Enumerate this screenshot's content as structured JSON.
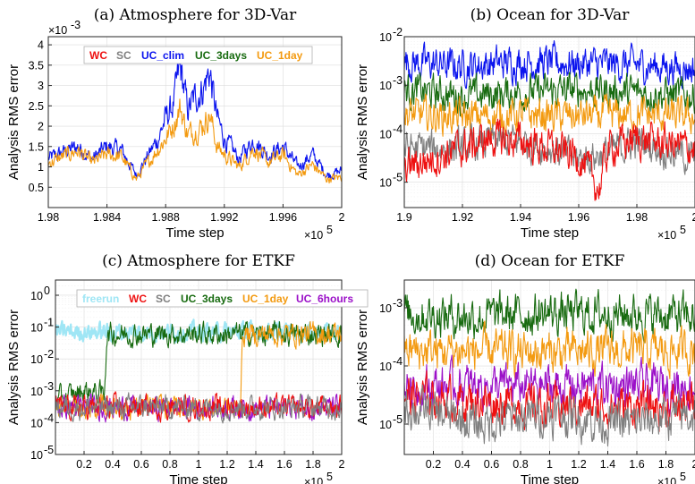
{
  "colors": {
    "WC": "#ee1111",
    "SC": "#808080",
    "UC_clim": "#0b14ee",
    "UC_3days": "#186b10",
    "UC_1day": "#f39a10",
    "UC_6hours": "#9b10c8",
    "freerun": "#9fe6f5"
  },
  "chart_data": [
    {
      "id": "a",
      "type": "line",
      "title": "(a) Atmosphere for 3D-Var",
      "xlabel": "Time step",
      "ylabel": "Analysis RMS error",
      "x_multiplier": "×10",
      "x_multiplier_exp": "5",
      "y_multiplier": "×10",
      "y_multiplier_exp": "-3",
      "xlim": [
        1.98,
        2.0
      ],
      "ylim": [
        0,
        4.2
      ],
      "yscale": "linear",
      "xticks": [
        1.98,
        1.984,
        1.988,
        1.992,
        1.996,
        2.0
      ],
      "xtick_labels": [
        "1.98",
        "1.984",
        "1.988",
        "1.992",
        "1.996",
        "2"
      ],
      "yticks": [
        0.5,
        1,
        1.5,
        2,
        2.5,
        3,
        3.5,
        4
      ],
      "ytick_labels": [
        "0.5",
        "1",
        "1.5",
        "2",
        "2.5",
        "3",
        "3.5",
        "4"
      ],
      "legend": [
        "WC",
        "SC",
        "UC_clim",
        "UC_3days",
        "UC_1day"
      ],
      "legend_position": "top",
      "grid": true,
      "series": [
        {
          "name": "UC_clim",
          "x": [
            1.98,
            1.981,
            1.982,
            1.983,
            1.984,
            1.985,
            1.986,
            1.987,
            1.9875,
            1.988,
            1.9885,
            1.989,
            1.9895,
            1.99,
            1.9905,
            1.991,
            1.9915,
            1.992,
            1.993,
            1.994,
            1.995,
            1.996,
            1.997,
            1.998,
            1.999,
            2.0
          ],
          "values": [
            1.2,
            1.35,
            1.5,
            1.2,
            1.5,
            1.4,
            0.8,
            1.4,
            1.7,
            2.2,
            2.5,
            3.45,
            2.4,
            2.7,
            2.9,
            3.35,
            2.2,
            1.7,
            1.2,
            1.65,
            1.3,
            1.5,
            1.0,
            1.3,
            0.8,
            0.9
          ]
        },
        {
          "name": "UC_1day",
          "x": [
            1.98,
            1.981,
            1.982,
            1.983,
            1.984,
            1.985,
            1.986,
            1.987,
            1.9875,
            1.988,
            1.9885,
            1.989,
            1.9895,
            1.99,
            1.9905,
            1.991,
            1.9915,
            1.992,
            1.993,
            1.994,
            1.995,
            1.996,
            1.997,
            1.998,
            1.999,
            2.0
          ],
          "values": [
            1.1,
            1.25,
            1.4,
            1.1,
            1.3,
            1.25,
            0.7,
            1.2,
            1.45,
            1.7,
            2.0,
            2.45,
            1.8,
            1.9,
            2.0,
            2.3,
            1.5,
            1.3,
            1.0,
            1.45,
            1.1,
            1.3,
            0.8,
            1.05,
            0.7,
            0.75
          ]
        }
      ]
    },
    {
      "id": "b",
      "type": "line",
      "title": "(b) Ocean for 3D-Var",
      "xlabel": "Time step",
      "ylabel": "Analysis RMS error",
      "x_multiplier": "×10",
      "x_multiplier_exp": "5",
      "xlim": [
        1.9,
        2.0
      ],
      "ylim": [
        3e-06,
        0.01
      ],
      "yscale": "log",
      "xticks": [
        1.9,
        1.92,
        1.94,
        1.96,
        1.98,
        2.0
      ],
      "xtick_labels": [
        "1.9",
        "1.92",
        "1.94",
        "1.96",
        "1.98",
        "2"
      ],
      "yticks": [
        1e-05,
        0.0001,
        0.001,
        0.01
      ],
      "ytick_labels": [
        [
          "10",
          "-5"
        ],
        [
          "10",
          "-4"
        ],
        [
          "10",
          "-3"
        ],
        [
          "10",
          "-2"
        ]
      ],
      "grid": true,
      "series": [
        {
          "name": "UC_clim",
          "x": [
            1.9,
            1.92,
            1.94,
            1.96,
            1.98,
            2.0
          ],
          "values": [
            0.003,
            0.0025,
            0.003,
            0.0028,
            0.0026,
            0.0022
          ]
        },
        {
          "name": "UC_3days",
          "x": [
            1.9,
            1.92,
            1.94,
            1.96,
            1.98,
            2.0
          ],
          "values": [
            0.0008,
            0.0006,
            0.0007,
            0.0008,
            0.0007,
            0.0006
          ]
        },
        {
          "name": "UC_1day",
          "x": [
            1.9,
            1.92,
            1.94,
            1.96,
            1.98,
            2.0
          ],
          "values": [
            0.00025,
            0.00022,
            0.00024,
            0.00023,
            0.00025,
            0.00022
          ]
        },
        {
          "name": "SC",
          "x": [
            1.9,
            1.92,
            1.93,
            1.94,
            1.95,
            1.96,
            1.97,
            1.98,
            2.0
          ],
          "values": [
            5e-05,
            5e-05,
            7e-05,
            7e-05,
            5e-05,
            3e-05,
            4e-05,
            7e-05,
            3e-05
          ]
        },
        {
          "name": "WC",
          "x": [
            1.9,
            1.92,
            1.93,
            1.94,
            1.95,
            1.96,
            1.967,
            1.97,
            1.98,
            2.0
          ],
          "values": [
            2e-05,
            5e-05,
            8e-05,
            7e-05,
            5e-05,
            3.5e-05,
            7e-06,
            5e-05,
            8e-05,
            5e-05
          ]
        }
      ]
    },
    {
      "id": "c",
      "type": "line",
      "title": "(c) Atmosphere for ETKF",
      "xlabel": "Time step",
      "ylabel": "Analysis RMS error",
      "x_multiplier": "×10",
      "x_multiplier_exp": "5",
      "xlim": [
        0,
        2.0
      ],
      "ylim": [
        1e-05,
        3
      ],
      "yscale": "log",
      "xticks": [
        0.2,
        0.4,
        0.6,
        0.8,
        1.0,
        1.2,
        1.4,
        1.6,
        1.8,
        2.0
      ],
      "xtick_labels": [
        "0.2",
        "0.4",
        "0.6",
        "0.8",
        "1",
        "1.2",
        "1.4",
        "1.6",
        "1.8",
        "2"
      ],
      "yticks": [
        1e-05,
        0.0001,
        0.001,
        0.01,
        0.1,
        1
      ],
      "ytick_labels": [
        [
          "10",
          "-5"
        ],
        [
          "10",
          "-4"
        ],
        [
          "10",
          "-3"
        ],
        [
          "10",
          "-2"
        ],
        [
          "10",
          "-1"
        ],
        [
          "10",
          "0"
        ]
      ],
      "legend": [
        "freerun",
        "WC",
        "SC",
        "UC_3days",
        "UC_1day",
        "UC_6hours"
      ],
      "legend_position": "top",
      "grid": true,
      "series": [
        {
          "name": "freerun",
          "x": [
            0,
            0.5,
            1.0,
            1.5,
            2.0
          ],
          "values": [
            0.07,
            0.07,
            0.07,
            0.07,
            0.07
          ]
        },
        {
          "name": "UC_3days",
          "x": [
            0,
            0.2,
            0.34,
            0.36,
            1.0,
            1.3,
            1.6,
            2.0
          ],
          "values": [
            0.0005,
            0.001,
            0.0008,
            0.06,
            0.06,
            0.06,
            0.06,
            0.06
          ]
        },
        {
          "name": "UC_1day",
          "x": [
            0,
            0.5,
            1.0,
            1.29,
            1.31,
            1.6,
            2.0
          ],
          "values": [
            0.0003,
            0.0003,
            0.0003,
            0.0003,
            0.06,
            0.06,
            0.06
          ]
        },
        {
          "name": "UC_6hours",
          "x": [
            0,
            0.5,
            1.0,
            1.3,
            1.6,
            2.0
          ],
          "values": [
            0.0003,
            0.0003,
            0.0003,
            0.0003,
            0.0003,
            0.0003
          ]
        },
        {
          "name": "WC",
          "x": [
            0,
            0.5,
            1.0,
            1.5,
            2.0
          ],
          "values": [
            0.0003,
            0.0003,
            0.0003,
            0.0003,
            0.0003
          ]
        },
        {
          "name": "SC",
          "x": [
            0,
            0.5,
            1.0,
            1.5,
            2.0
          ],
          "values": [
            0.0003,
            0.0003,
            0.0003,
            0.0003,
            0.0003
          ]
        }
      ]
    },
    {
      "id": "d",
      "type": "line",
      "title": "(d) Ocean for ETKF",
      "xlabel": "Time step",
      "ylabel": "Analysis RMS error",
      "x_multiplier": "×10",
      "x_multiplier_exp": "5",
      "xlim": [
        0,
        2.0
      ],
      "ylim": [
        3e-06,
        0.003
      ],
      "yscale": "log",
      "xticks": [
        0.2,
        0.4,
        0.6,
        0.8,
        1.0,
        1.2,
        1.4,
        1.6,
        1.8,
        2.0
      ],
      "xtick_labels": [
        "0.2",
        "0.4",
        "0.6",
        "0.8",
        "1",
        "1.2",
        "1.4",
        "1.6",
        "1.8",
        "2"
      ],
      "yticks": [
        1e-05,
        0.0001,
        0.001
      ],
      "ytick_labels": [
        [
          "10",
          "-5"
        ],
        [
          "10",
          "-4"
        ],
        [
          "10",
          "-3"
        ]
      ],
      "grid": true,
      "series": [
        {
          "name": "UC_3days",
          "x": [
            0,
            0.5,
            1.0,
            1.5,
            2.0
          ],
          "values": [
            0.0008,
            0.0007,
            0.0008,
            0.0008,
            0.0007
          ]
        },
        {
          "name": "UC_1day",
          "x": [
            0,
            0.5,
            1.0,
            1.5,
            2.0
          ],
          "values": [
            0.00018,
            0.00018,
            0.00017,
            0.00018,
            0.00018
          ]
        },
        {
          "name": "UC_6hours",
          "x": [
            0,
            0.5,
            1.0,
            1.5,
            2.0
          ],
          "values": [
            4.5e-05,
            4.5e-05,
            4.5e-05,
            4.5e-05,
            4.5e-05
          ]
        },
        {
          "name": "WC",
          "x": [
            0,
            0.5,
            1.0,
            1.5,
            2.0
          ],
          "values": [
            3e-05,
            2.5e-05,
            2e-05,
            2e-05,
            2e-05
          ]
        },
        {
          "name": "SC",
          "x": [
            0,
            0.5,
            1.0,
            1.5,
            2.0
          ],
          "values": [
            2e-05,
            1e-05,
            1.5e-05,
            1e-05,
            1.5e-05
          ]
        }
      ]
    }
  ]
}
